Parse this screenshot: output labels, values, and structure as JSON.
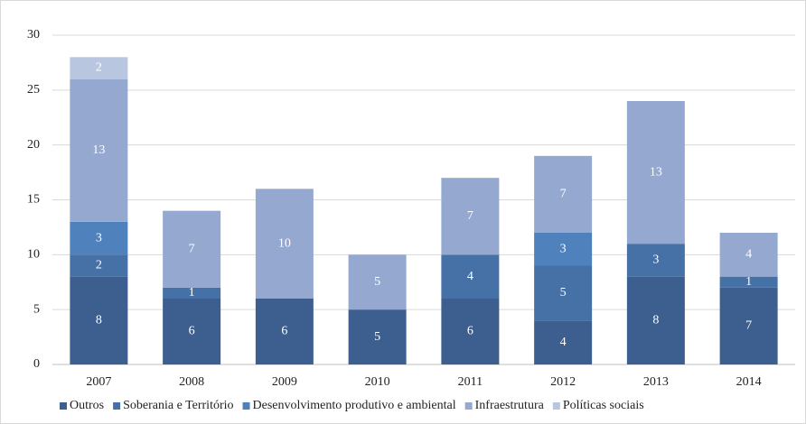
{
  "chart_data": {
    "type": "stacked_bar",
    "categories": [
      "2007",
      "2008",
      "2009",
      "2010",
      "2011",
      "2012",
      "2013",
      "2014"
    ],
    "series": [
      {
        "name": "Outros",
        "color": "#3d5f8f",
        "values": [
          8,
          6,
          6,
          5,
          6,
          4,
          8,
          7
        ]
      },
      {
        "name": "Soberania e Território",
        "color": "#4671a6",
        "values": [
          2,
          1,
          0,
          0,
          4,
          5,
          3,
          1
        ]
      },
      {
        "name": "Desenvolvimento produtivo e ambiental",
        "color": "#4f81bd",
        "values": [
          3,
          0,
          0,
          0,
          0,
          3,
          0,
          0
        ]
      },
      {
        "name": "Infraestrutura",
        "color": "#95a9d0",
        "values": [
          13,
          7,
          10,
          5,
          7,
          7,
          13,
          4
        ]
      },
      {
        "name": "Políticas sociais",
        "color": "#b9c6e0",
        "values": [
          2,
          0,
          0,
          0,
          0,
          0,
          0,
          0
        ]
      }
    ],
    "ylim": [
      0,
      30
    ],
    "yticks": [
      0,
      5,
      10,
      15,
      20,
      25,
      30
    ],
    "grid": true,
    "legend": "bottom"
  }
}
